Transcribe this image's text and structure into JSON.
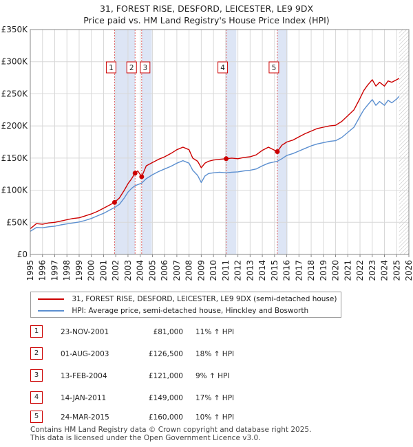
{
  "title": {
    "line1": "31, FOREST RISE, DESFORD, LEICESTER, LE9 9DX",
    "line2": "Price paid vs. HM Land Registry's House Price Index (HPI)"
  },
  "legend": {
    "property": "31, FOREST RISE, DESFORD, LEICESTER, LE9 9DX (semi-detached house)",
    "hpi": "HPI: Average price, semi-detached house, Hinckley and Bosworth"
  },
  "colors": {
    "property": "#cc0000",
    "hpi": "#5b8fd0",
    "shade": "#dde5f5",
    "grid": "#d8d8d8"
  },
  "sales": [
    {
      "num": "1",
      "date": "23-NOV-2001",
      "price": "£81,000",
      "hpi": "11% ↑ HPI"
    },
    {
      "num": "2",
      "date": "01-AUG-2003",
      "price": "£126,500",
      "hpi": "18% ↑ HPI"
    },
    {
      "num": "3",
      "date": "13-FEB-2004",
      "price": "£121,000",
      "hpi": "9% ↑ HPI"
    },
    {
      "num": "4",
      "date": "14-JAN-2011",
      "price": "£149,000",
      "hpi": "17% ↑ HPI"
    },
    {
      "num": "5",
      "date": "24-MAR-2015",
      "price": "£160,000",
      "hpi": "10% ↑ HPI"
    }
  ],
  "footer": {
    "line1": "Contains HM Land Registry data © Crown copyright and database right 2025.",
    "line2": "This data is licensed under the Open Government Licence v3.0."
  },
  "chart_data": {
    "type": "line",
    "title": "31, FOREST RISE, DESFORD, LEICESTER, LE9 9DX",
    "subtitle": "Price paid vs. HM Land Registry's House Price Index (HPI)",
    "xlim": [
      1995,
      2026
    ],
    "ylim": [
      0,
      350000
    ],
    "x_ticks": [
      "1995",
      "1996",
      "1997",
      "1998",
      "1999",
      "2000",
      "2001",
      "2002",
      "2003",
      "2004",
      "2005",
      "2006",
      "2007",
      "2008",
      "2009",
      "2010",
      "2011",
      "2012",
      "2013",
      "2014",
      "2015",
      "2016",
      "2017",
      "2018",
      "2019",
      "2020",
      "2021",
      "2022",
      "2023",
      "2024",
      "2025",
      "2026"
    ],
    "y_ticks": [
      {
        "value": 0,
        "label": "£0"
      },
      {
        "value": 50000,
        "label": "£50K"
      },
      {
        "value": 100000,
        "label": "£100K"
      },
      {
        "value": 150000,
        "label": "£150K"
      },
      {
        "value": 200000,
        "label": "£200K"
      },
      {
        "value": 250000,
        "label": "£250K"
      },
      {
        "value": 300000,
        "label": "£300K"
      },
      {
        "value": 350000,
        "label": "£350K"
      }
    ],
    "shaded_spans": [
      [
        2001.9,
        2003.58
      ],
      [
        2004.12,
        2004.95
      ],
      [
        2011.04,
        2011.87
      ],
      [
        2015.23,
        2016.06
      ]
    ],
    "future_start": 2025.2,
    "series": [
      {
        "name": "31, FOREST RISE, DESFORD, LEICESTER, LE9 9DX (semi-detached house)",
        "x": [
          1995.0,
          1995.5,
          1996,
          1996.5,
          1997,
          1997.5,
          1998,
          1998.5,
          1999,
          1999.5,
          2000,
          2000.5,
          2001,
          2001.5,
          2001.9,
          2002.3,
          2002.7,
          2003.0,
          2003.3,
          2003.58,
          2003.8,
          2004.12,
          2004.5,
          2005,
          2005.5,
          2006,
          2006.5,
          2007,
          2007.5,
          2008,
          2008.3,
          2008.7,
          2009.0,
          2009.3,
          2009.6,
          2010,
          2010.5,
          2011.04,
          2011.5,
          2012,
          2012.5,
          2013,
          2013.5,
          2014,
          2014.5,
          2015.23,
          2015.6,
          2016,
          2016.5,
          2017,
          2017.5,
          2018,
          2018.5,
          2019,
          2019.5,
          2020,
          2020.5,
          2021,
          2021.5,
          2022,
          2022.3,
          2022.6,
          2023,
          2023.3,
          2023.6,
          2024,
          2024.3,
          2024.6,
          2025.0,
          2025.2
        ],
        "values": [
          40000,
          48000,
          47000,
          49000,
          50000,
          52000,
          54000,
          56000,
          57000,
          60000,
          63000,
          67000,
          72000,
          77000,
          81000,
          88000,
          100000,
          110000,
          118000,
          126500,
          130000,
          121000,
          138000,
          143000,
          148000,
          152000,
          157000,
          163000,
          167000,
          163000,
          150000,
          145000,
          135000,
          142000,
          145000,
          147000,
          148000,
          149000,
          150000,
          149000,
          151000,
          152000,
          155000,
          162000,
          167000,
          160000,
          170000,
          175000,
          178000,
          183000,
          188000,
          192000,
          196000,
          198000,
          200000,
          201000,
          207000,
          216000,
          225000,
          243000,
          255000,
          263000,
          272000,
          262000,
          268000,
          262000,
          270000,
          268000,
          272000,
          274000
        ]
      },
      {
        "name": "HPI: Average price, semi-detached house, Hinckley and Bosworth",
        "x": [
          1995.0,
          1995.5,
          1996,
          1996.5,
          1997,
          1997.5,
          1998,
          1998.5,
          1999,
          1999.5,
          2000,
          2000.5,
          2001,
          2001.5,
          2001.9,
          2002.3,
          2002.7,
          2003.0,
          2003.3,
          2003.58,
          2004.12,
          2004.5,
          2005,
          2005.5,
          2006,
          2006.5,
          2007,
          2007.5,
          2008,
          2008.3,
          2008.7,
          2009.0,
          2009.3,
          2009.6,
          2010,
          2010.5,
          2011.04,
          2011.5,
          2012,
          2012.5,
          2013,
          2013.5,
          2014,
          2014.5,
          2015.23,
          2015.6,
          2016,
          2016.5,
          2017,
          2017.5,
          2018,
          2018.5,
          2019,
          2019.5,
          2020,
          2020.5,
          2021,
          2021.5,
          2022,
          2022.3,
          2022.6,
          2023,
          2023.3,
          2023.6,
          2024,
          2024.3,
          2024.6,
          2025.0,
          2025.2
        ],
        "values": [
          36000,
          42000,
          41500,
          43000,
          44000,
          46000,
          47500,
          49000,
          50500,
          53000,
          56000,
          60000,
          64000,
          69000,
          73000,
          78000,
          88000,
          97000,
          103000,
          107000,
          111000,
          118000,
          124000,
          129000,
          133000,
          137000,
          142000,
          146000,
          142000,
          131000,
          123000,
          112000,
          122000,
          126000,
          127000,
          128000,
          127000,
          128000,
          128500,
          130000,
          131000,
          133000,
          138000,
          142000,
          145000,
          149000,
          154000,
          157000,
          161000,
          165000,
          169000,
          172000,
          174000,
          176000,
          177000,
          182000,
          190000,
          198000,
          215000,
          225000,
          232000,
          241000,
          232000,
          238000,
          232000,
          240000,
          236000,
          242000,
          246000
        ]
      }
    ],
    "sale_points": [
      {
        "label": "1",
        "x": 2001.9,
        "value": 81000
      },
      {
        "label": "2",
        "x": 2003.58,
        "value": 126500
      },
      {
        "label": "3",
        "x": 2004.12,
        "value": 121000
      },
      {
        "label": "4",
        "x": 2011.04,
        "value": 149000
      },
      {
        "label": "5",
        "x": 2015.23,
        "value": 160000
      }
    ]
  }
}
